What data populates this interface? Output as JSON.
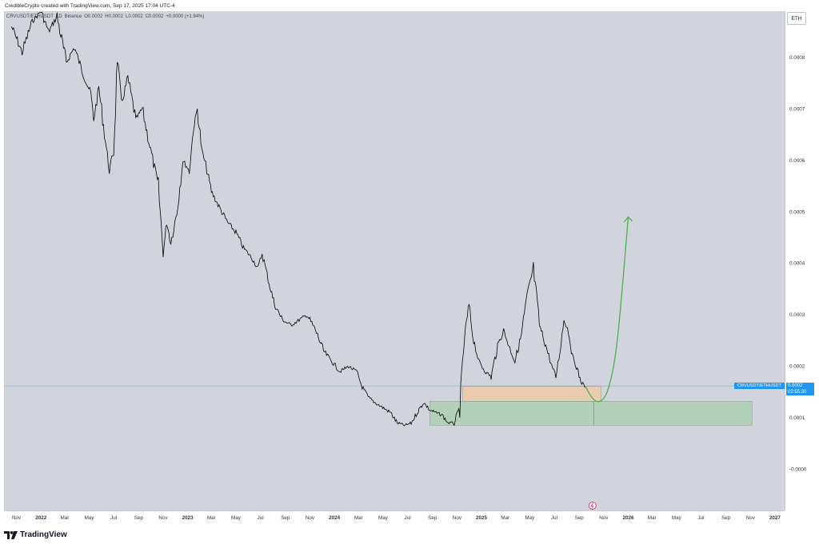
{
  "header": {
    "credit": "CredibleCrypto created with TradingView.com, Sep 17, 2025 17:04 UTC-4"
  },
  "legend": {
    "symbol": "CRVUSDT/ETHUSDT",
    "interval": "1D",
    "exchange": "Binance",
    "open": "O0.0002",
    "high": "H0.0002",
    "low": "L0.0002",
    "close": "C0.0002",
    "change": "+0.0000 (+1.94%)"
  },
  "toolbar": {
    "currency_button": "ETH"
  },
  "price_tag": {
    "value": "0.0002",
    "countdown": "02:55:30",
    "color": "#2196f3"
  },
  "brand": {
    "name": "TradingView"
  },
  "colors": {
    "background": "#d1d4dc",
    "price_line": "#000000",
    "projection": "#4caf50",
    "resistance_zone": "#f0c9a0",
    "support_zone": "#a8cfb0"
  },
  "chart_data": {
    "type": "line",
    "title": "",
    "xlabel": "",
    "ylabel": "",
    "x_tick_labels": [
      "Nov",
      "2022",
      "Mar",
      "May",
      "Jul",
      "Sep",
      "Nov",
      "2023",
      "Mar",
      "May",
      "Jul",
      "Sep",
      "Nov",
      "2024",
      "Mar",
      "May",
      "Jul",
      "Sep",
      "Nov",
      "2025",
      "Mar",
      "May",
      "Jul",
      "Sep",
      "Nov",
      "2026",
      "Mar",
      "May",
      "Jul",
      "Sep",
      "Nov",
      "2027"
    ],
    "y_tick_labels": [
      "0.0008",
      "0.0007",
      "0.0006",
      "0.0005",
      "0.0004",
      "0.0003",
      "0.0002",
      "0.0001",
      "-0.0000"
    ],
    "ylim": [
      -8e-05,
      0.00089
    ],
    "series": [
      {
        "x": [
          "2021-10-20",
          "2021-11-15",
          "2021-12-10",
          "2022-01-01",
          "2022-01-20",
          "2022-02-10",
          "2022-03-05",
          "2022-03-25",
          "2022-04-15",
          "2022-05-05",
          "2022-05-12",
          "2022-05-25",
          "2022-06-10",
          "2022-06-20",
          "2022-07-01",
          "2022-07-10",
          "2022-07-20",
          "2022-08-05",
          "2022-08-25",
          "2022-09-10",
          "2022-10-01",
          "2022-10-20",
          "2022-11-01",
          "2022-11-10",
          "2022-11-20",
          "2022-12-05",
          "2022-12-20",
          "2023-01-05",
          "2023-01-15",
          "2023-01-25",
          "2023-02-05",
          "2023-02-15",
          "2023-03-01",
          "2023-03-20",
          "2023-04-10",
          "2023-05-01",
          "2023-05-20",
          "2023-06-10",
          "2023-06-25",
          "2023-07-05",
          "2023-07-20",
          "2023-08-05",
          "2023-08-25",
          "2023-09-15",
          "2023-10-05",
          "2023-10-25",
          "2023-11-15",
          "2023-12-05",
          "2023-12-25",
          "2024-01-15",
          "2024-02-05",
          "2024-02-25",
          "2024-03-10",
          "2024-03-25",
          "2024-04-10",
          "2024-04-30",
          "2024-05-20",
          "2024-06-05",
          "2024-06-25",
          "2024-07-10",
          "2024-07-25",
          "2024-08-10",
          "2024-08-25",
          "2024-09-10",
          "2024-09-25",
          "2024-10-10",
          "2024-10-25",
          "2024-11-08",
          "2024-11-20",
          "2024-12-01",
          "2024-12-10",
          "2024-12-25",
          "2025-01-10",
          "2025-01-25",
          "2025-02-10",
          "2025-02-25",
          "2025-03-10",
          "2025-03-25",
          "2025-04-10",
          "2025-04-25",
          "2025-05-10",
          "2025-05-25",
          "2025-06-10",
          "2025-06-25",
          "2025-07-05",
          "2025-07-15",
          "2025-07-25",
          "2025-08-05",
          "2025-08-15",
          "2025-08-25",
          "2025-09-05",
          "2025-09-17"
        ],
        "values": [
          0.00086,
          0.00081,
          0.00087,
          0.00089,
          0.00085,
          0.00088,
          0.00079,
          0.00082,
          0.00077,
          0.00073,
          0.00068,
          0.00074,
          0.00064,
          0.00058,
          0.00062,
          0.0008,
          0.00071,
          0.00076,
          0.00068,
          0.0007,
          0.00062,
          0.00055,
          0.00042,
          0.00048,
          0.00044,
          0.0005,
          0.0006,
          0.00058,
          0.00066,
          0.0007,
          0.00062,
          0.00059,
          0.00054,
          0.00051,
          0.00048,
          0.00046,
          0.00043,
          0.00041,
          0.00039,
          0.00042,
          0.00037,
          0.00032,
          0.00029,
          0.00028,
          0.00029,
          0.0003,
          0.00027,
          0.00023,
          0.00021,
          0.00019,
          0.0002,
          0.00019,
          0.00016,
          0.00014,
          0.00013,
          0.00012,
          0.00011,
          9e-05,
          8.5e-05,
          9e-05,
          0.00011,
          0.00013,
          0.000115,
          0.00011,
          0.000105,
          9e-05,
          9e-05,
          0.00012,
          0.00026,
          0.00032,
          0.00026,
          0.00021,
          0.00019,
          0.00018,
          0.00024,
          0.00027,
          0.00024,
          0.00021,
          0.00026,
          0.00034,
          0.00039,
          0.00028,
          0.00024,
          0.0002,
          0.00018,
          0.00023,
          0.00029,
          0.00027,
          0.00022,
          0.0002,
          0.00017,
          0.00016
        ]
      }
    ],
    "projection": {
      "x": [
        "2025-09-17",
        "2025-10-01",
        "2025-10-15",
        "2025-11-01",
        "2025-11-15",
        "2025-12-01",
        "2025-12-15",
        "2026-01-01"
      ],
      "values": [
        0.00016,
        0.00014,
        0.00013,
        0.000135,
        0.00016,
        0.00022,
        0.00033,
        0.00049
      ]
    },
    "zones": [
      {
        "name": "resistance",
        "x0": "2024-11-15",
        "x1": "2025-10-25",
        "y0": 0.000132,
        "y1": 0.000161
      },
      {
        "name": "support",
        "x0": "2024-08-25",
        "x1": "2026-11-05",
        "y0": 8.55e-05,
        "y1": 0.000132
      }
    ],
    "current_price": 0.000162,
    "grid": false,
    "legend": "top-left"
  }
}
